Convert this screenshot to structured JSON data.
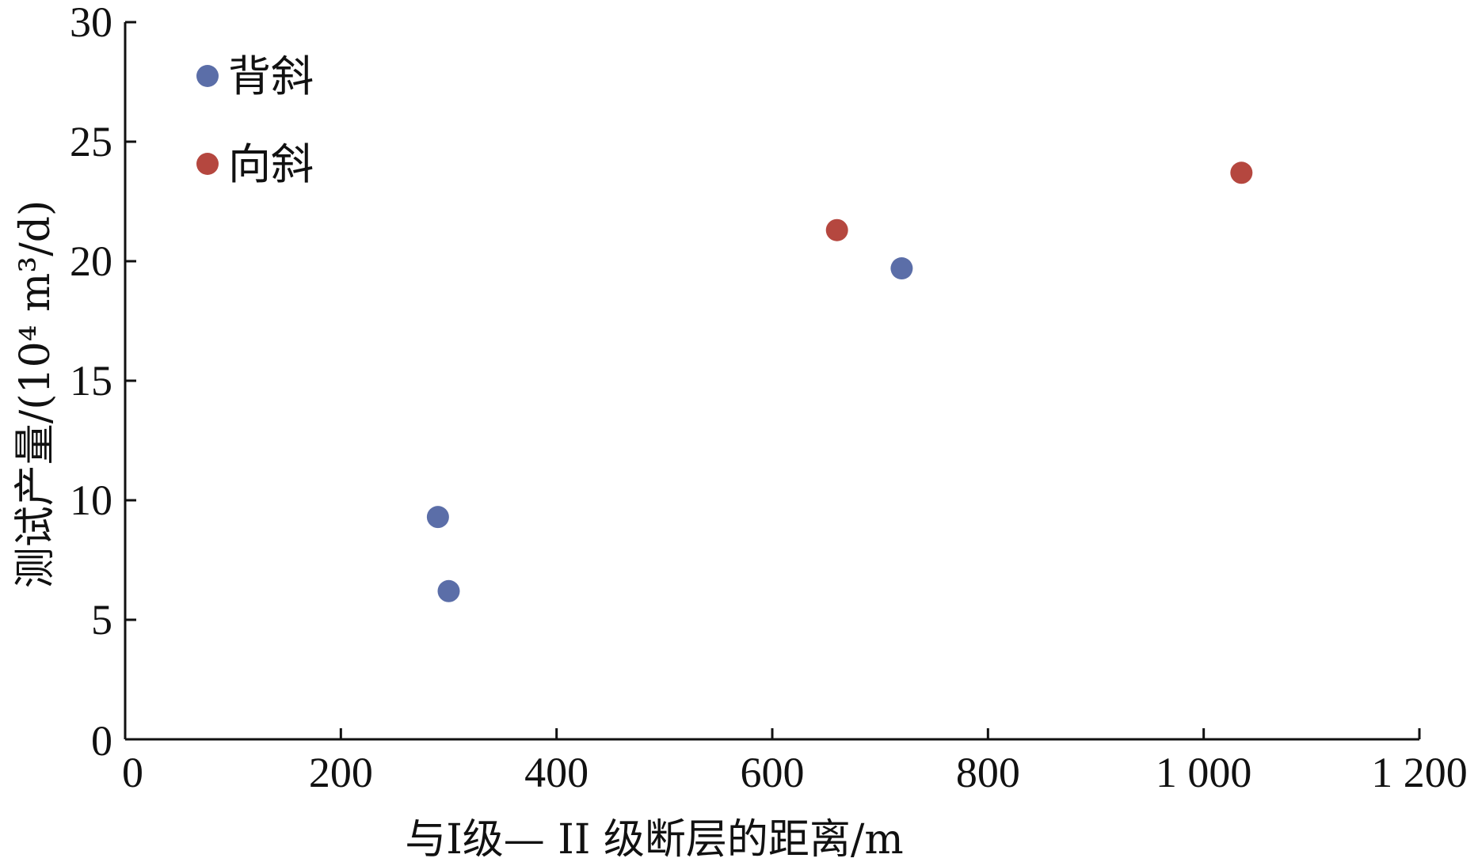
{
  "chart_data": {
    "type": "scatter",
    "title": "",
    "xlabel": "与I级— II 级断层的距离/m",
    "ylabel": "测试产量/(10⁴ m³/d)",
    "xlim": [
      0,
      1200
    ],
    "ylim": [
      0,
      30
    ],
    "x_ticks": [
      0,
      200,
      400,
      600,
      800,
      1000,
      1200
    ],
    "x_tick_labels": [
      "0",
      "200",
      "400",
      "600",
      "800",
      "1 000",
      "1 200"
    ],
    "y_ticks": [
      0,
      5,
      10,
      15,
      20,
      25,
      30
    ],
    "y_tick_labels": [
      "0",
      "5",
      "10",
      "15",
      "20",
      "25",
      "30"
    ],
    "grid": false,
    "legend_position": "top-left",
    "series": [
      {
        "name": "背斜",
        "color": "#5b6ea8",
        "points": [
          {
            "x": 290,
            "y": 9.3
          },
          {
            "x": 300,
            "y": 6.2
          },
          {
            "x": 720,
            "y": 19.7
          }
        ]
      },
      {
        "name": "向斜",
        "color": "#b5473f",
        "points": [
          {
            "x": 660,
            "y": 21.3
          },
          {
            "x": 1035,
            "y": 23.7
          }
        ]
      }
    ]
  }
}
